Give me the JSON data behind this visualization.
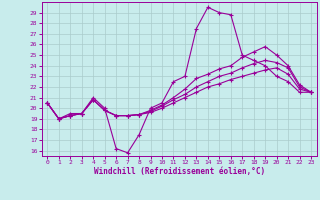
{
  "xlabel": "Windchill (Refroidissement éolien,°C)",
  "xlim": [
    -0.5,
    23.5
  ],
  "ylim": [
    15.5,
    30.0
  ],
  "yticks": [
    16,
    17,
    18,
    19,
    20,
    21,
    22,
    23,
    24,
    25,
    26,
    27,
    28,
    29
  ],
  "xticks": [
    0,
    1,
    2,
    3,
    4,
    5,
    6,
    7,
    8,
    9,
    10,
    11,
    12,
    13,
    14,
    15,
    16,
    17,
    18,
    19,
    20,
    21,
    22,
    23
  ],
  "bg_color": "#c8ecec",
  "line_color": "#990099",
  "grid_color": "#aacccc",
  "series1": [
    20.5,
    19.0,
    19.5,
    19.5,
    21.0,
    20.0,
    16.2,
    15.8,
    17.5,
    20.0,
    20.5,
    22.5,
    23.0,
    27.5,
    29.5,
    29.0,
    28.8,
    25.0,
    24.5,
    24.0,
    23.0,
    22.5,
    21.5,
    21.5
  ],
  "series2": [
    20.5,
    19.0,
    19.3,
    19.5,
    20.8,
    19.8,
    19.3,
    19.3,
    19.4,
    19.6,
    20.0,
    20.5,
    21.0,
    21.5,
    22.0,
    22.3,
    22.7,
    23.0,
    23.3,
    23.6,
    23.8,
    23.2,
    21.8,
    21.5
  ],
  "series3": [
    20.5,
    19.0,
    19.3,
    19.5,
    20.8,
    19.8,
    19.3,
    19.3,
    19.4,
    19.7,
    20.2,
    20.8,
    21.3,
    22.0,
    22.5,
    23.0,
    23.3,
    23.8,
    24.2,
    24.5,
    24.3,
    23.8,
    22.0,
    21.5
  ],
  "series4": [
    20.5,
    19.0,
    19.3,
    19.5,
    20.8,
    19.8,
    19.3,
    19.3,
    19.4,
    19.8,
    20.3,
    21.0,
    21.8,
    22.8,
    23.2,
    23.7,
    24.0,
    24.8,
    25.3,
    25.8,
    25.0,
    24.0,
    22.2,
    21.5
  ]
}
